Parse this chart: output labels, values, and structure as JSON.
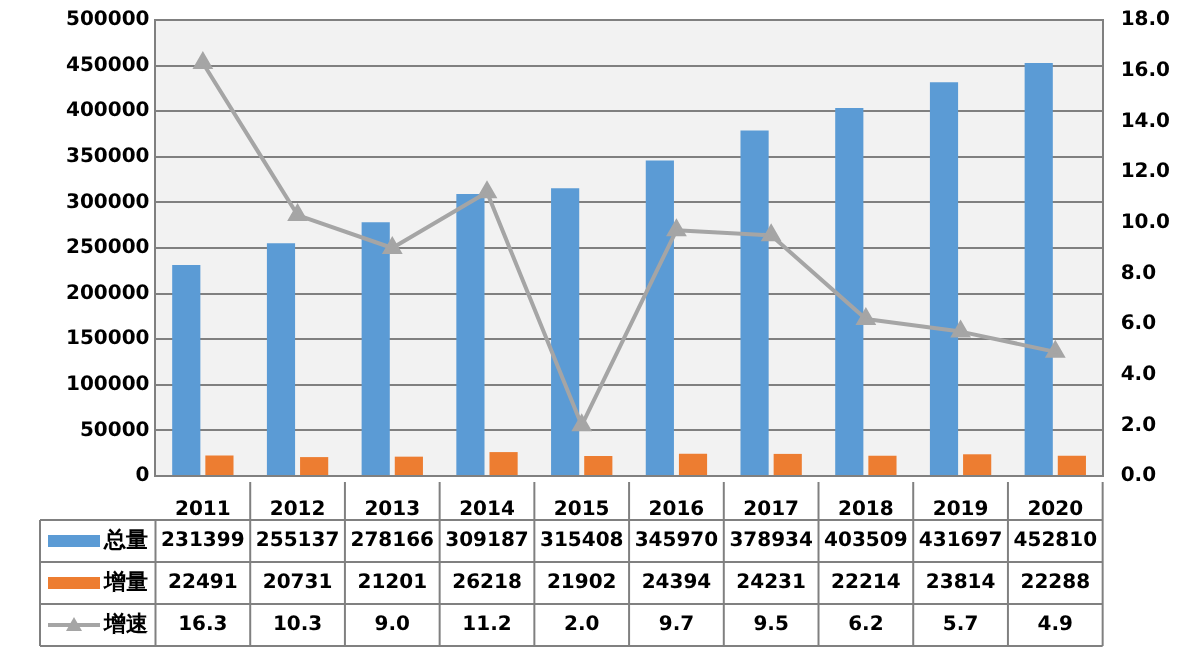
{
  "chart_data": {
    "type": "bar",
    "categories": [
      "2011",
      "2012",
      "2013",
      "2014",
      "2015",
      "2016",
      "2017",
      "2018",
      "2019",
      "2020"
    ],
    "series": [
      {
        "name": "总量",
        "color": "#5b9bd5",
        "values": [
          231399,
          255137,
          278166,
          309187,
          315408,
          345970,
          378934,
          403509,
          431697,
          452810
        ]
      },
      {
        "name": "增量",
        "color": "#ed7d31",
        "values": [
          22491,
          20731,
          21201,
          26218,
          21902,
          24394,
          24231,
          22214,
          23814,
          22288
        ]
      },
      {
        "name": "增速",
        "type": "line",
        "axis": "y2",
        "color": "#a5a5a5",
        "marker": "triangle",
        "values": [
          16.3,
          10.3,
          9.0,
          11.2,
          2.0,
          9.7,
          9.5,
          6.2,
          5.7,
          4.9
        ],
        "value_labels": [
          "16.3",
          "10.3",
          "9.0",
          "11.2",
          "2.0",
          "9.7",
          "9.5",
          "6.2",
          "5.7",
          "4.9"
        ]
      }
    ],
    "ylim": [
      0,
      500000
    ],
    "yticks": [
      0,
      50000,
      100000,
      150000,
      200000,
      250000,
      300000,
      350000,
      400000,
      450000,
      500000
    ],
    "y2lim": [
      0,
      18
    ],
    "y2ticks": [
      {
        "value": 0,
        "label": "0.0"
      },
      {
        "value": 2,
        "label": "2.0"
      },
      {
        "value": 4,
        "label": "4.0"
      },
      {
        "value": 6,
        "label": "6.0"
      },
      {
        "value": 8,
        "label": "8.0"
      },
      {
        "value": 10,
        "label": "10.0"
      },
      {
        "value": 12,
        "label": "12.0"
      },
      {
        "value": 14,
        "label": "14.0"
      },
      {
        "value": 16,
        "label": "16.0"
      },
      {
        "value": 18,
        "label": "18.0"
      }
    ],
    "grid": "y",
    "legend": "bottom",
    "data_labels": true
  }
}
